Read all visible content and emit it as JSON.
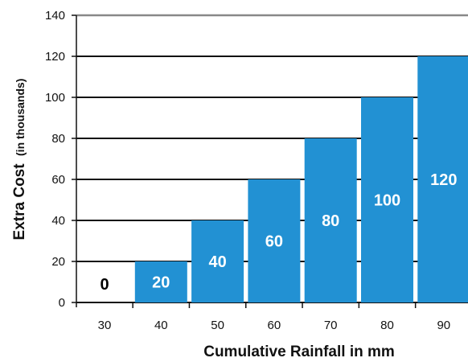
{
  "chart_data": {
    "type": "bar",
    "categories": [
      "30",
      "40",
      "50",
      "60",
      "70",
      "80",
      "90"
    ],
    "values": [
      0,
      20,
      40,
      60,
      80,
      100,
      120
    ],
    "data_labels": [
      "0",
      "20",
      "40",
      "60",
      "80",
      "100",
      "120"
    ],
    "xlabel": "Cumulative Rainfall in mm",
    "ylabel_main": "Extra Cost",
    "ylabel_sub": "(in thousands)",
    "ylim": [
      0,
      140
    ],
    "yticks": [
      "0",
      "20",
      "40",
      "60",
      "80",
      "100",
      "120",
      "140"
    ],
    "grid": true,
    "colors": {
      "bar": "#2291d3",
      "bar_label": "#ffffff",
      "zero_label": "#000000",
      "grid": "#111111",
      "top_grid": "#888888"
    }
  }
}
